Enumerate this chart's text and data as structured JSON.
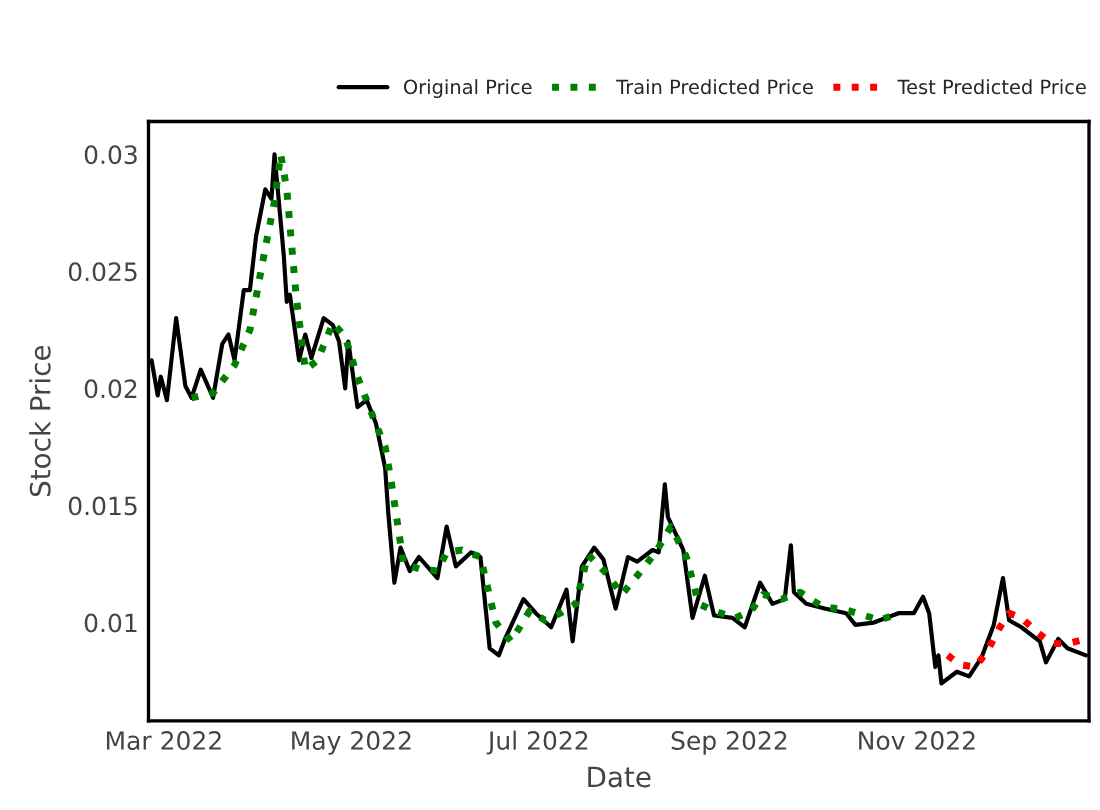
{
  "chart_data": {
    "type": "line",
    "xlabel": "Date",
    "ylabel": "Stock Price",
    "legend": "top",
    "grid": false,
    "xlim": [
      "2022-02-24",
      "2022-12-27"
    ],
    "ylim": [
      0.0058,
      0.0314
    ],
    "xticks": [
      {
        "value": "2022-03-01",
        "label": "Mar 2022"
      },
      {
        "value": "2022-05-01",
        "label": "May 2022"
      },
      {
        "value": "2022-07-01",
        "label": "Jul 2022"
      },
      {
        "value": "2022-09-01",
        "label": "Sep 2022"
      },
      {
        "value": "2022-11-01",
        "label": "Nov 2022"
      }
    ],
    "yticks": [
      0.01,
      0.015,
      0.02,
      0.025,
      0.03
    ],
    "series": [
      {
        "name": "Original Price",
        "color": "#000000",
        "line_style": "solid",
        "x": [
          "2022-02-25",
          "2022-02-27",
          "2022-02-28",
          "2022-03-02",
          "2022-03-05",
          "2022-03-08",
          "2022-03-10",
          "2022-03-13",
          "2022-03-17",
          "2022-03-20",
          "2022-03-22",
          "2022-03-24",
          "2022-03-27",
          "2022-03-29",
          "2022-03-31",
          "2022-04-03",
          "2022-04-05",
          "2022-04-06",
          "2022-04-09",
          "2022-04-10",
          "2022-04-11",
          "2022-04-14",
          "2022-04-16",
          "2022-04-18",
          "2022-04-22",
          "2022-04-25",
          "2022-04-27",
          "2022-04-29",
          "2022-04-30",
          "2022-05-03",
          "2022-05-06",
          "2022-05-09",
          "2022-05-12",
          "2022-05-13",
          "2022-05-15",
          "2022-05-17",
          "2022-05-20",
          "2022-05-23",
          "2022-05-29",
          "2022-06-01",
          "2022-06-04",
          "2022-06-09",
          "2022-06-12",
          "2022-06-15",
          "2022-06-18",
          "2022-06-20",
          "2022-06-26",
          "2022-06-30",
          "2022-07-05",
          "2022-07-10",
          "2022-07-12",
          "2022-07-15",
          "2022-07-19",
          "2022-07-22",
          "2022-07-26",
          "2022-07-30",
          "2022-08-02",
          "2022-08-07",
          "2022-08-09",
          "2022-08-11",
          "2022-08-12",
          "2022-08-17",
          "2022-08-20",
          "2022-08-24",
          "2022-08-27",
          "2022-09-02",
          "2022-09-06",
          "2022-09-11",
          "2022-09-15",
          "2022-09-19",
          "2022-09-21",
          "2022-09-22",
          "2022-09-26",
          "2022-10-02",
          "2022-10-09",
          "2022-10-12",
          "2022-10-18",
          "2022-10-26",
          "2022-10-31",
          "2022-11-03",
          "2022-11-05",
          "2022-11-07",
          "2022-11-08",
          "2022-11-09",
          "2022-11-14",
          "2022-11-18",
          "2022-11-22",
          "2022-11-26",
          "2022-11-29",
          "2022-12-01",
          "2022-12-05",
          "2022-12-11",
          "2022-12-13",
          "2022-12-17",
          "2022-12-20",
          "2022-12-26"
        ],
        "values": [
          0.0212,
          0.0197,
          0.0205,
          0.0195,
          0.023,
          0.0201,
          0.0196,
          0.0208,
          0.0196,
          0.0219,
          0.0223,
          0.0212,
          0.0242,
          0.0242,
          0.0265,
          0.0285,
          0.0281,
          0.03,
          0.0257,
          0.0237,
          0.024,
          0.0212,
          0.0223,
          0.0213,
          0.023,
          0.0227,
          0.022,
          0.02,
          0.022,
          0.0192,
          0.0195,
          0.0185,
          0.0166,
          0.0147,
          0.0117,
          0.0132,
          0.0122,
          0.0128,
          0.0119,
          0.0141,
          0.0124,
          0.013,
          0.0128,
          0.0089,
          0.0086,
          0.0093,
          0.011,
          0.0104,
          0.0098,
          0.0114,
          0.0092,
          0.0124,
          0.0132,
          0.0127,
          0.0106,
          0.0128,
          0.0126,
          0.0131,
          0.013,
          0.0159,
          0.0145,
          0.0131,
          0.0102,
          0.012,
          0.0103,
          0.0102,
          0.0098,
          0.0117,
          0.0108,
          0.011,
          0.0133,
          0.0113,
          0.0108,
          0.0106,
          0.0104,
          0.0099,
          0.01,
          0.0104,
          0.0104,
          0.0111,
          0.0104,
          0.0081,
          0.0086,
          0.0074,
          0.0079,
          0.0077,
          0.0085,
          0.0099,
          0.0119,
          0.0101,
          0.0098,
          0.0092,
          0.0083,
          0.0093,
          0.0089,
          0.0086
        ]
      },
      {
        "name": "Train Predicted Price",
        "color": "#008000",
        "line_style": "dotted",
        "x": [
          "2022-03-10",
          "2022-03-17",
          "2022-03-24",
          "2022-03-29",
          "2022-04-03",
          "2022-04-06",
          "2022-04-08",
          "2022-04-10",
          "2022-04-13",
          "2022-04-16",
          "2022-04-20",
          "2022-04-25",
          "2022-04-29",
          "2022-05-03",
          "2022-05-08",
          "2022-05-12",
          "2022-05-14",
          "2022-05-18",
          "2022-05-23",
          "2022-05-29",
          "2022-06-01",
          "2022-06-06",
          "2022-06-12",
          "2022-06-17",
          "2022-06-22",
          "2022-06-28",
          "2022-07-03",
          "2022-07-08",
          "2022-07-13",
          "2022-07-17",
          "2022-07-23",
          "2022-07-28",
          "2022-08-02",
          "2022-08-08",
          "2022-08-13",
          "2022-08-18",
          "2022-08-22",
          "2022-08-27",
          "2022-09-03",
          "2022-09-08",
          "2022-09-12",
          "2022-09-18",
          "2022-09-24",
          "2022-10-01",
          "2022-10-10",
          "2022-10-20",
          "2022-10-26"
        ],
        "values": [
          0.0196,
          0.0198,
          0.021,
          0.0225,
          0.026,
          0.028,
          0.03,
          0.0285,
          0.024,
          0.0208,
          0.0212,
          0.0228,
          0.0222,
          0.0205,
          0.0188,
          0.0175,
          0.016,
          0.0125,
          0.0123,
          0.0122,
          0.013,
          0.0131,
          0.0128,
          0.01,
          0.0092,
          0.0105,
          0.0101,
          0.0104,
          0.0108,
          0.0129,
          0.0121,
          0.0112,
          0.012,
          0.013,
          0.0141,
          0.0128,
          0.0108,
          0.0105,
          0.0102,
          0.0105,
          0.0112,
          0.011,
          0.0113,
          0.0107,
          0.0105,
          0.0101,
          0.0104
        ]
      },
      {
        "name": "Test Predicted Price",
        "color": "#ff0000",
        "line_style": "dotted",
        "x": [
          "2022-11-11",
          "2022-11-15",
          "2022-11-20",
          "2022-11-24",
          "2022-11-28",
          "2022-12-01",
          "2022-12-05",
          "2022-12-10",
          "2022-12-15",
          "2022-12-20",
          "2022-12-26"
        ],
        "values": [
          0.0086,
          0.0082,
          0.0081,
          0.0088,
          0.0098,
          0.0104,
          0.0102,
          0.0096,
          0.0091,
          0.0091,
          0.0093
        ]
      }
    ]
  }
}
